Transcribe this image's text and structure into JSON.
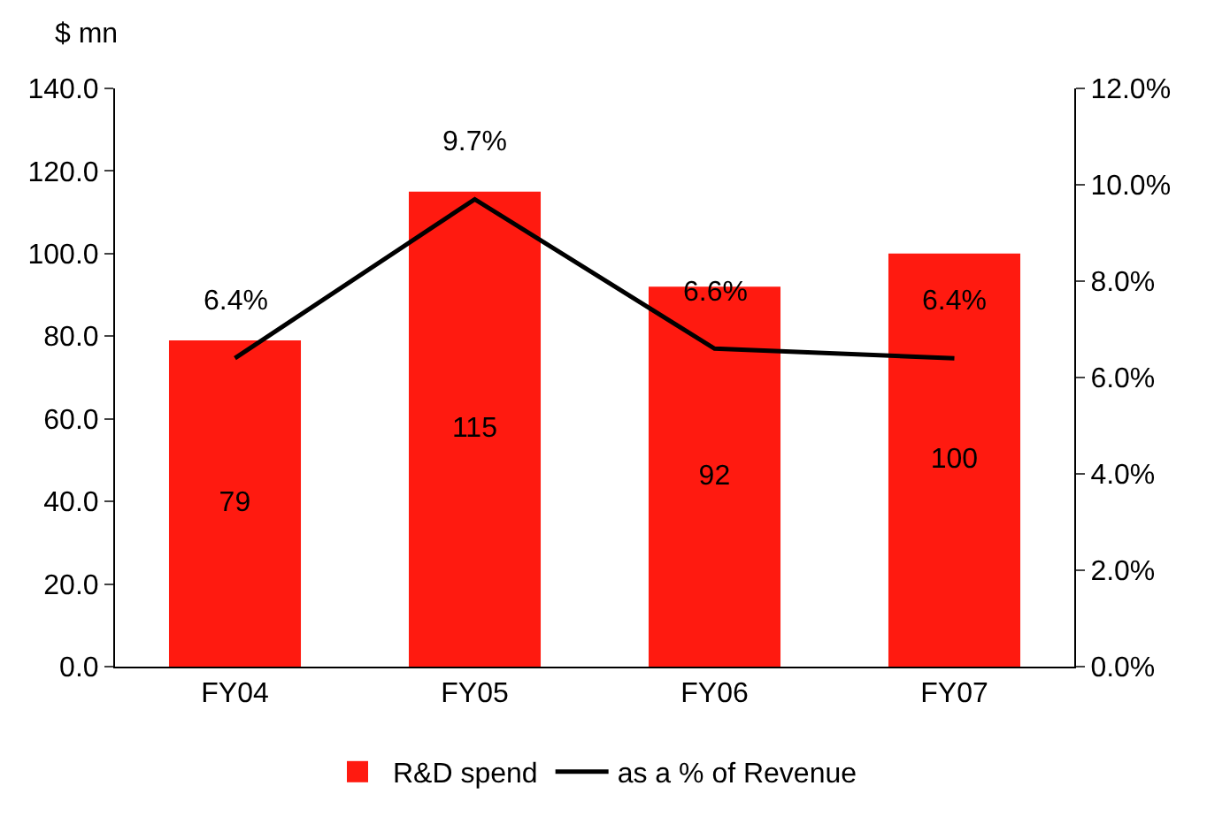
{
  "chart_data": {
    "type": "bar",
    "ylabel": "$ mn",
    "categories": [
      "FY04",
      "FY05",
      "FY06",
      "FY07"
    ],
    "series": [
      {
        "name": "R&D spend",
        "color": "#ff1a10",
        "values": [
          79,
          115,
          92,
          100
        ],
        "value_labels": [
          "79",
          "115",
          "92",
          "100"
        ]
      },
      {
        "name": "as a % of Revenue",
        "type": "line",
        "axis": "y2",
        "color": "#000000",
        "values": [
          6.4,
          9.7,
          6.6,
          6.4
        ],
        "value_labels": [
          "6.4%",
          "9.7%",
          "6.6%",
          "6.4%"
        ],
        "marker": "none",
        "line_style": "solid"
      }
    ],
    "ylim": [
      0,
      140
    ],
    "yticks": [
      {
        "value": 0,
        "label": "0.0"
      },
      {
        "value": 20,
        "label": "20.0"
      },
      {
        "value": 40,
        "label": "40.0"
      },
      {
        "value": 60,
        "label": "60.0"
      },
      {
        "value": 80,
        "label": "80.0"
      },
      {
        "value": 100,
        "label": "100.0"
      },
      {
        "value": 120,
        "label": "120.0"
      },
      {
        "value": 140,
        "label": "140.0"
      }
    ],
    "y2lim": [
      0,
      12
    ],
    "y2ticks": [
      {
        "value": 0,
        "label": "0.0%"
      },
      {
        "value": 2,
        "label": "2.0%"
      },
      {
        "value": 4,
        "label": "4.0%"
      },
      {
        "value": 6,
        "label": "6.0%"
      },
      {
        "value": 8,
        "label": "8.0%"
      },
      {
        "value": 10,
        "label": "10.0%"
      },
      {
        "value": 12,
        "label": "12.0%"
      }
    ],
    "grid": false,
    "legend": "bottom"
  }
}
